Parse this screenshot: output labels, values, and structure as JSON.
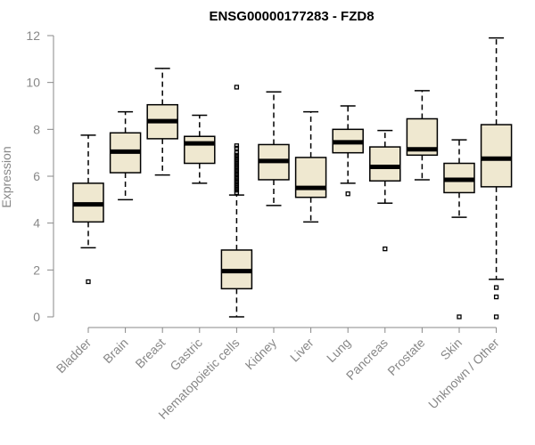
{
  "chart_data": {
    "type": "boxplot",
    "title": "ENSG00000177283 - FZD8",
    "xlabel": "",
    "ylabel": "Expression",
    "ylim": [
      0,
      12
    ],
    "yticks": [
      0,
      2,
      4,
      6,
      8,
      10,
      12
    ],
    "grid": false,
    "colors": {
      "box_fill": "#efe8d0",
      "stroke": "#000000",
      "axis": "#888888"
    },
    "categories": [
      "Bladder",
      "Brain",
      "Breast",
      "Gastric",
      "Hematopoietic cells",
      "Kidney",
      "Liver",
      "Lung",
      "Pancreas",
      "Prostate",
      "Skin",
      "Unknown / Other"
    ],
    "boxes": [
      {
        "category": "Bladder",
        "whisker_low": 2.95,
        "q1": 4.05,
        "median": 4.8,
        "q3": 5.7,
        "whisker_high": 7.75,
        "outliers": [
          1.5
        ]
      },
      {
        "category": "Brain",
        "whisker_low": 5.0,
        "q1": 6.15,
        "median": 7.05,
        "q3": 7.85,
        "whisker_high": 8.75,
        "outliers": []
      },
      {
        "category": "Breast",
        "whisker_low": 6.05,
        "q1": 7.6,
        "median": 8.35,
        "q3": 9.05,
        "whisker_high": 10.6,
        "outliers": []
      },
      {
        "category": "Gastric",
        "whisker_low": 5.7,
        "q1": 6.55,
        "median": 7.4,
        "q3": 7.7,
        "whisker_high": 8.6,
        "outliers": []
      },
      {
        "category": "Hematopoietic cells",
        "whisker_low": 0.0,
        "q1": 1.2,
        "median": 1.95,
        "q3": 2.85,
        "whisker_high": 5.2,
        "outliers": [
          9.8,
          7.3,
          7.2,
          7.0,
          6.9,
          6.8,
          6.7,
          6.6,
          6.5,
          6.4,
          6.3,
          6.2,
          6.1,
          6.0,
          5.9,
          5.8,
          5.7,
          5.6,
          5.5,
          5.4,
          5.3
        ]
      },
      {
        "category": "Kidney",
        "whisker_low": 4.75,
        "q1": 5.85,
        "median": 6.65,
        "q3": 7.35,
        "whisker_high": 9.6,
        "outliers": []
      },
      {
        "category": "Liver",
        "whisker_low": 4.05,
        "q1": 5.1,
        "median": 5.5,
        "q3": 6.8,
        "whisker_high": 8.75,
        "outliers": []
      },
      {
        "category": "Lung",
        "whisker_low": 5.7,
        "q1": 7.0,
        "median": 7.45,
        "q3": 8.0,
        "whisker_high": 9.0,
        "outliers": [
          5.25
        ]
      },
      {
        "category": "Pancreas",
        "whisker_low": 4.85,
        "q1": 5.8,
        "median": 6.4,
        "q3": 7.25,
        "whisker_high": 7.95,
        "outliers": [
          2.9
        ]
      },
      {
        "category": "Prostate",
        "whisker_low": 5.85,
        "q1": 6.9,
        "median": 7.15,
        "q3": 8.45,
        "whisker_high": 9.65,
        "outliers": []
      },
      {
        "category": "Skin",
        "whisker_low": 4.25,
        "q1": 5.3,
        "median": 5.85,
        "q3": 6.55,
        "whisker_high": 7.55,
        "outliers": [
          0.0
        ]
      },
      {
        "category": "Unknown / Other",
        "whisker_low": 1.6,
        "q1": 5.55,
        "median": 6.75,
        "q3": 8.2,
        "whisker_high": 11.9,
        "outliers": [
          1.25,
          0.85,
          0.0
        ]
      }
    ]
  }
}
